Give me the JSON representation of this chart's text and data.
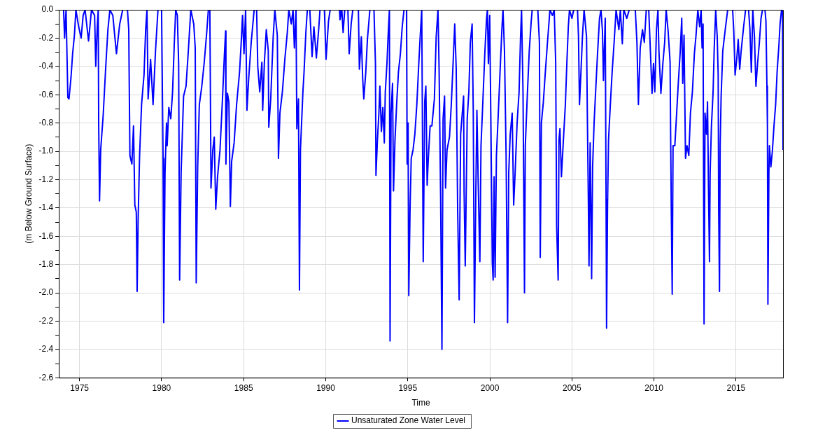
{
  "chart_data": {
    "type": "line",
    "xlabel": "Time",
    "ylabel": "(m Below Ground Surface)",
    "xlim": [
      1973.74,
      2017.86
    ],
    "ylim": [
      -2.6,
      0
    ],
    "xticks": [
      1975,
      1980,
      1985,
      1990,
      1995,
      2000,
      2005,
      2010,
      2015
    ],
    "yticks": [
      {
        "value": 0,
        "label": "0.0"
      },
      {
        "value": -0.1,
        "label": null
      },
      -0.2,
      {
        "value": -0.3,
        "label": null
      },
      -0.4,
      {
        "value": -0.5,
        "label": null
      },
      -0.6,
      {
        "value": -0.7,
        "label": null
      },
      -0.8,
      {
        "value": -0.9,
        "label": null
      },
      {
        "value": -1,
        "label": "-1.0"
      },
      {
        "value": -1.1,
        "label": null
      },
      -1.2,
      {
        "value": -1.3,
        "label": null
      },
      -1.4,
      {
        "value": -1.5,
        "label": null
      },
      -1.6,
      {
        "value": -1.7,
        "label": null
      },
      -1.8,
      {
        "value": -1.9,
        "label": null
      },
      {
        "value": -2,
        "label": "-2.0"
      },
      {
        "value": -2.1,
        "label": null
      },
      -2.2,
      {
        "value": -2.3,
        "label": null
      },
      -2.4,
      {
        "value": -2.5,
        "label": null
      },
      -2.6
    ],
    "grid": true,
    "legend": "bottom",
    "marker": "none",
    "line_style": "solid",
    "series": [
      {
        "name": "Unsaturated Zone Water Level",
        "color": "#0000ff",
        "x": [
          1974.03,
          1974.09,
          1974.18,
          1974.29,
          1974.36,
          1974.48,
          1974.58,
          1974.69,
          1974.78,
          1974.95,
          1975.1,
          1975.22,
          1975.34,
          1975.55,
          1975.73,
          1975.92,
          1975.99,
          1976.08,
          1976.14,
          1976.17,
          1976.22,
          1976.29,
          1976.44,
          1976.59,
          1976.73,
          1976.85,
          1977.03,
          1977.25,
          1977.45,
          1977.63,
          1977.92,
          1978.0,
          1978.07,
          1978.19,
          1978.29,
          1978.37,
          1978.46,
          1978.51,
          1978.57,
          1978.66,
          1978.78,
          1978.93,
          1979.03,
          1979.11,
          1979.18,
          1979.33,
          1979.48,
          1979.63,
          1979.78,
          1980.0,
          1980.09,
          1980.13,
          1980.21,
          1980.3,
          1980.34,
          1980.44,
          1980.56,
          1980.67,
          1980.77,
          1980.86,
          1980.96,
          1981.04,
          1981.1,
          1981.19,
          1981.34,
          1981.49,
          1981.63,
          1981.78,
          1981.96,
          1982.05,
          1982.11,
          1982.2,
          1982.3,
          1982.45,
          1982.6,
          1982.75,
          1982.85,
          1982.94,
          1982.97,
          1983.01,
          1983.12,
          1983.21,
          1983.3,
          1983.41,
          1983.56,
          1983.71,
          1983.83,
          1983.9,
          1983.92,
          1984.01,
          1984.1,
          1984.19,
          1984.27,
          1984.42,
          1984.57,
          1984.75,
          1984.87,
          1984.93,
          1985.02,
          1985.12,
          1985.2,
          1985.31,
          1985.46,
          1985.64,
          1985.79,
          1985.86,
          1985.98,
          1986.11,
          1986.16,
          1986.26,
          1986.38,
          1986.5,
          1986.53,
          1986.65,
          1986.8,
          1986.9,
          1987.05,
          1987.12,
          1987.21,
          1987.36,
          1987.51,
          1987.66,
          1987.75,
          1987.9,
          1988.01,
          1988.09,
          1988.19,
          1988.24,
          1988.34,
          1988.4,
          1988.46,
          1988.61,
          1988.68,
          1988.79,
          1988.88,
          1989.03,
          1989.17,
          1989.28,
          1989.43,
          1989.57,
          1989.65,
          1989.92,
          1990.02,
          1990.17,
          1990.27,
          1990.84,
          1990.87,
          1990.98,
          1991.06,
          1991.16,
          1991.35,
          1991.43,
          1991.55,
          1991.65,
          1991.99,
          1992.05,
          1992.17,
          1992.25,
          1992.32,
          1992.44,
          1992.54,
          1992.69,
          1992.94,
          1993.03,
          1993.06,
          1993.15,
          1993.24,
          1993.3,
          1993.39,
          1993.48,
          1993.57,
          1993.63,
          1993.73,
          1993.8,
          1993.88,
          1993.92,
          1993.98,
          1994.07,
          1994.13,
          1994.22,
          1994.32,
          1994.43,
          1994.55,
          1994.66,
          1994.77,
          1994.92,
          1994.96,
          1995.02,
          1995.06,
          1995.14,
          1995.21,
          1995.32,
          1995.43,
          1995.55,
          1995.67,
          1995.76,
          1995.85,
          1995.88,
          1995.94,
          1996.03,
          1996.1,
          1996.18,
          1996.25,
          1996.36,
          1996.47,
          1996.62,
          1996.73,
          1996.84,
          1996.91,
          1997.0,
          1997.08,
          1997.15,
          1997.24,
          1997.3,
          1997.39,
          1997.54,
          1997.65,
          1997.77,
          1997.86,
          1997.95,
          1998.04,
          1998.13,
          1998.22,
          1998.32,
          1998.4,
          1998.43,
          1998.5,
          1998.62,
          1998.72,
          1998.81,
          1998.92,
          1998.99,
          1999.06,
          1999.14,
          1999.21,
          1999.29,
          1999.39,
          1999.46,
          1999.58,
          1999.7,
          1999.8,
          1999.85,
          1999.91,
          1999.99,
          2000.06,
          2000.15,
          2000.2,
          2000.26,
          2000.32,
          2000.4,
          2000.5,
          2000.62,
          2000.74,
          2000.8,
          2000.89,
          2000.99,
          2001.08,
          2001.15,
          2001.24,
          2001.36,
          2001.45,
          2001.54,
          2001.66,
          2001.78,
          2001.87,
          2001.93,
          2002.02,
          2002.11,
          2002.16,
          2002.28,
          2002.4,
          2002.52,
          2002.58,
          2002.92,
          2003.02,
          2003.07,
          2003.14,
          2003.26,
          2003.38,
          2003.51,
          2003.66,
          2003.81,
          2003.92,
          2004.01,
          2004.07,
          2004.16,
          2004.21,
          2004.27,
          2004.36,
          2004.48,
          2004.6,
          2004.69,
          2004.78,
          2004.85,
          2005.0,
          2005.11,
          2005.34,
          2005.4,
          2005.46,
          2005.55,
          2005.64,
          2005.74,
          2005.89,
          2005.94,
          2006.0,
          2006.04,
          2006.11,
          2006.16,
          2006.2,
          2006.26,
          2006.35,
          2006.46,
          2006.56,
          2006.68,
          2006.77,
          2006.86,
          2006.92,
          2006.97,
          2007.03,
          2007.08,
          2007.11,
          2007.17,
          2007.23,
          2007.33,
          2007.45,
          2007.57,
          2007.69,
          2007.86,
          2007.95,
          2008.07,
          2008.16,
          2008.34,
          2008.49,
          2008.86,
          2008.96,
          2009.05,
          2009.16,
          2009.3,
          2009.41,
          2009.53,
          2009.68,
          2009.76,
          2009.88,
          2009.97,
          2010.05,
          2010.15,
          2010.24,
          2010.3,
          2010.42,
          2010.54,
          2010.65,
          2010.74,
          2010.86,
          2010.98,
          2011.01,
          2011.05,
          2011.11,
          2011.16,
          2011.27,
          2011.38,
          2011.48,
          2011.6,
          2011.69,
          2011.75,
          2011.83,
          2011.92,
          2012.01,
          2012.12,
          2012.22,
          2012.34,
          2012.46,
          2012.56,
          2012.67,
          2012.78,
          2012.87,
          2012.93,
          2012.99,
          2013.05,
          2013.11,
          2013.2,
          2013.26,
          2013.32,
          2013.38,
          2013.42,
          2013.5,
          2013.6,
          2013.67,
          2013.76,
          2013.85,
          2013.91,
          2013.94,
          2013.99,
          2014.03,
          2014.09,
          2014.19,
          2014.34,
          2014.49,
          2014.79,
          2014.86,
          2014.94,
          2015.04,
          2015.13,
          2015.22,
          2015.31,
          2015.46,
          2015.58,
          2015.76,
          2015.84,
          2015.93,
          2016.02,
          2016.12,
          2016.21,
          2016.31,
          2016.42,
          2016.52,
          2016.61,
          2016.76,
          2016.82,
          2016.88,
          2016.91,
          2016.94,
          2017.0,
          2017.03,
          2017.12,
          2017.21,
          2017.31,
          2017.41,
          2017.5,
          2017.61,
          2017.68,
          2017.77,
          2017.83,
          2017.86
        ],
        "values": [
          0,
          -0.2,
          0,
          -0.62,
          -0.63,
          -0.48,
          -0.31,
          -0.18,
          0,
          -0.12,
          -0.2,
          -0.04,
          0,
          -0.22,
          0,
          -0.04,
          -0.4,
          -0.12,
          0,
          -0.82,
          -1.35,
          -0.99,
          -0.75,
          -0.42,
          -0.14,
          0,
          -0.04,
          -0.31,
          -0.1,
          0,
          0,
          -0.14,
          -1.03,
          -1.09,
          -0.82,
          -1.38,
          -1.43,
          -1.99,
          -1.49,
          -1.03,
          -0.67,
          -0.46,
          -0.14,
          0,
          -0.63,
          -0.35,
          -0.67,
          -0.29,
          0,
          0,
          -1.05,
          -2.21,
          -1.15,
          -0.8,
          -0.96,
          -0.69,
          -0.77,
          -0.58,
          -0.25,
          0,
          -0.04,
          -0.38,
          -1.91,
          -1.15,
          -0.61,
          -0.54,
          -0.29,
          0,
          -0.1,
          -0.27,
          -1.93,
          -1.11,
          -0.67,
          -0.54,
          -0.37,
          -0.16,
          0,
          0,
          -0.5,
          -1.26,
          -0.99,
          -0.9,
          -1.41,
          -1.18,
          -0.99,
          -0.63,
          -0.31,
          -0.15,
          -1.09,
          -0.59,
          -0.65,
          -1.39,
          -1.07,
          -0.94,
          -0.67,
          -0.44,
          -0.19,
          -0.04,
          -0.31,
          0,
          -0.71,
          -0.48,
          -0.23,
          0,
          0,
          -0.4,
          -0.58,
          -0.37,
          -0.71,
          -0.38,
          -0.14,
          -0.29,
          -0.83,
          -0.63,
          -0.19,
          0,
          -0.18,
          -1.05,
          -0.73,
          -0.58,
          -0.35,
          -0.16,
          0,
          -0.1,
          0,
          -0.27,
          0,
          -0.84,
          -0.63,
          -1.98,
          -0.99,
          -0.58,
          -0.44,
          -0.16,
          0,
          0,
          -0.33,
          -0.12,
          -0.34,
          -0.14,
          0,
          0,
          -0.35,
          -0.08,
          0,
          0,
          -0.07,
          0,
          -0.16,
          0,
          0,
          -0.31,
          -0.1,
          0,
          0,
          -0.42,
          -0.19,
          -0.48,
          -0.63,
          -0.44,
          -0.21,
          0,
          0,
          -0.38,
          -1.17,
          -0.92,
          -0.73,
          -0.54,
          -0.86,
          -0.69,
          -0.94,
          -0.58,
          -0.38,
          -0.19,
          0,
          -2.34,
          -0.73,
          -0.52,
          -1.28,
          -0.92,
          -0.67,
          -0.44,
          -0.31,
          -0.12,
          0,
          0,
          -1.09,
          -0.8,
          -2.02,
          -1.39,
          -1.05,
          -0.99,
          -0.88,
          -0.67,
          -0.38,
          -0.18,
          0,
          -0.58,
          -1.78,
          -0.65,
          -0.54,
          -1.24,
          -1.05,
          -0.82,
          -0.82,
          -0.63,
          -0.19,
          0,
          -0.44,
          -1.32,
          -2.4,
          -0.77,
          -0.61,
          -1.26,
          -0.99,
          -0.9,
          -0.67,
          -0.35,
          -0.1,
          -0.42,
          -1.43,
          -2.05,
          -0.88,
          -0.73,
          -0.61,
          -1.28,
          -1.81,
          -0.77,
          -0.58,
          -0.23,
          -0.1,
          -0.73,
          -2.21,
          -1.34,
          -0.71,
          -1.22,
          -1.78,
          -0.96,
          -0.63,
          -0.29,
          -0.06,
          0,
          -0.38,
          -0.04,
          -0.77,
          -1.79,
          -1.91,
          -1.18,
          -1.89,
          -1.03,
          -0.77,
          -0.44,
          -0.12,
          0,
          -0.29,
          -1.03,
          -2.21,
          -1.15,
          -0.88,
          -0.73,
          -1.38,
          -1.15,
          -0.8,
          -0.58,
          -0.19,
          0,
          -0.58,
          -2,
          -0.96,
          -0.61,
          -0.29,
          -0.08,
          0,
          0,
          -0.23,
          -1.75,
          -0.8,
          -0.65,
          -0.44,
          -0.23,
          0,
          -0.04,
          0,
          -0.37,
          -1.53,
          -1.91,
          -0.92,
          -0.84,
          -1.18,
          -0.92,
          -0.67,
          -0.38,
          -0.12,
          0,
          -0.06,
          0,
          0,
          -0.19,
          -0.67,
          -0.44,
          -0.19,
          0,
          -0.19,
          -0.75,
          -1.34,
          -1.81,
          -0.94,
          -1.45,
          -1.9,
          -1.11,
          -0.8,
          -0.54,
          -0.31,
          -0.06,
          0,
          -0.15,
          -0.5,
          -0.29,
          -0.06,
          -1.34,
          -2.25,
          -1.38,
          -0.92,
          -0.69,
          -0.44,
          -0.23,
          0,
          -0.14,
          0,
          -0.24,
          0,
          -0.06,
          0,
          0,
          -0.23,
          -0.67,
          -0.27,
          -0.14,
          -0.23,
          0,
          0,
          -0.23,
          -0.59,
          -0.38,
          -0.58,
          -0.14,
          0,
          -0.29,
          -0.59,
          -0.38,
          -0.23,
          0,
          -0.15,
          -0.37,
          -0.84,
          -1.38,
          -2.01,
          -0.96,
          -0.96,
          -0.73,
          -0.52,
          -0.29,
          -0.06,
          -0.52,
          -0.18,
          -1.05,
          -0.96,
          -1.03,
          -0.73,
          -0.58,
          -0.31,
          -0.18,
          0,
          -0.12,
          0,
          -0.27,
          -0.1,
          -2.22,
          -0.73,
          -0.88,
          -0.65,
          -1.26,
          -1.78,
          -1.15,
          -0.82,
          -0.58,
          -0.27,
          0,
          -0.19,
          -0.46,
          -1.41,
          -1.99,
          -0.96,
          -0.61,
          -0.29,
          -0.14,
          0,
          0,
          -0.15,
          -0.46,
          -0.35,
          -0.21,
          -0.42,
          -0.29,
          -0.12,
          0,
          0,
          -0.13,
          -0.44,
          0,
          -0.19,
          -0.54,
          -0.38,
          -0.23,
          -0.06,
          0,
          0,
          -0.08,
          -0.54,
          -0.82,
          -2.08,
          -1.15,
          -0.96,
          -1.11,
          -1,
          -0.82,
          -0.67,
          -0.44,
          -0.25,
          -0.1,
          0,
          0,
          -0.99
        ]
      }
    ]
  }
}
